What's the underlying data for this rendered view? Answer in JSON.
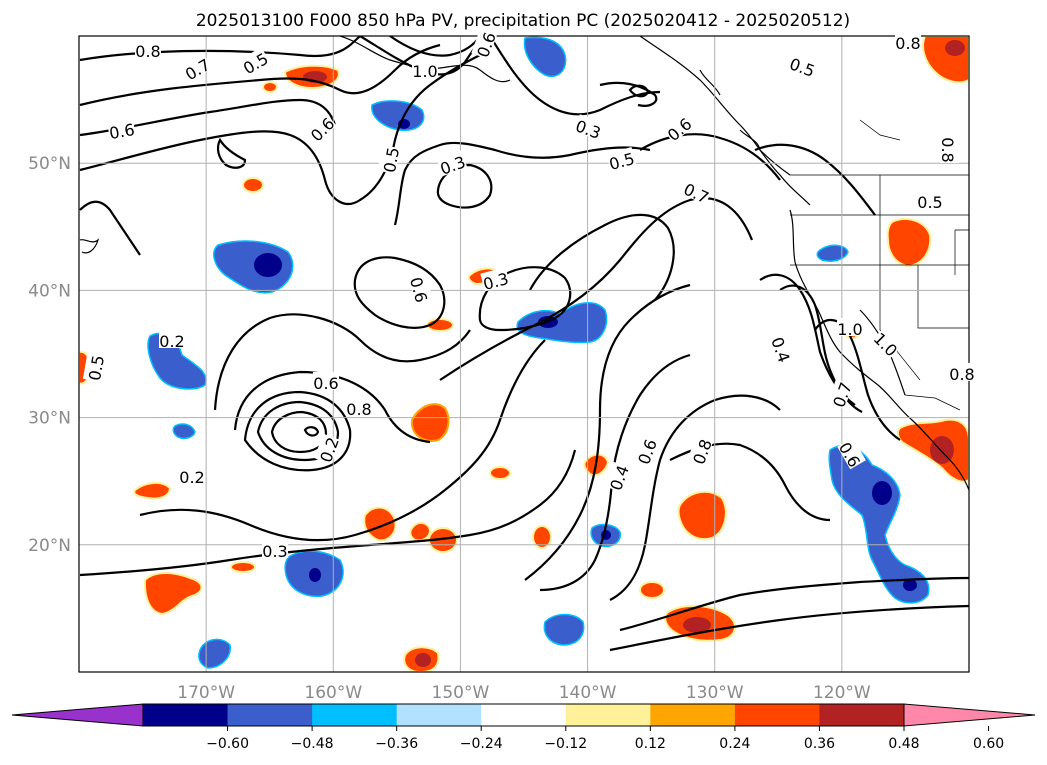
{
  "title": "2025013100 F000 850 hPa PV, precipitation PC (2025020412 - 2025020512)",
  "map": {
    "lon_range": [
      -180,
      -110
    ],
    "lat_range": [
      10,
      60
    ],
    "lat_labels": [
      "20°N",
      "30°N",
      "40°N",
      "50°N"
    ],
    "lon_labels": [
      "170°W",
      "160°W",
      "150°W",
      "140°W",
      "130°W",
      "120°W"
    ],
    "gridlines": true,
    "contour_labels": [
      "0.8",
      "0.7",
      "0.5",
      "1.0",
      "0.6",
      "0.6",
      "0.8",
      "0.6",
      "0.3",
      "0.5",
      "0.3",
      "0.6",
      "0.5",
      "0.7",
      "0.8",
      "0.5",
      "0.5",
      "0.6",
      "0.3",
      "0.2",
      "0.5",
      "0.6",
      "0.8",
      "0.2",
      "0.2",
      "0.3",
      "0.4",
      "0.6",
      "0.8",
      "0.4",
      "1.0",
      "0.7",
      "0.6",
      "1.0",
      "0.8"
    ]
  },
  "colorbar": {
    "ticks": [
      "−0.60",
      "−0.48",
      "−0.36",
      "−0.24",
      "−0.12",
      "0.12",
      "0.24",
      "0.36",
      "0.48",
      "0.60"
    ],
    "colors": [
      "#9932cc",
      "#00008b",
      "#3a5fcd",
      "#00bfff",
      "#b0e2ff",
      "#ffffff",
      "#fff09a",
      "#ffa500",
      "#ff4500",
      "#b22222",
      "#ff88aa"
    ]
  },
  "colors": {
    "neg_strong": "#00008b",
    "neg_mid": "#3a5fcd",
    "neg_light": "#00bfff",
    "pos_light": "#fff09a",
    "pos_mid": "#ffa500",
    "pos_strong": "#ff4500",
    "pos_vstrong": "#b22222"
  }
}
